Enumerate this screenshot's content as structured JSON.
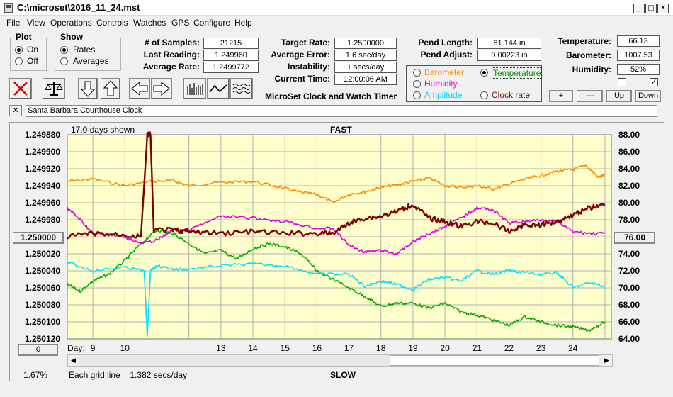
{
  "window": {
    "title": "C:\\microset\\2016_11_24.mst",
    "min": "_",
    "max": "□",
    "close": "✕"
  },
  "menu": [
    "File",
    "View",
    "Operations",
    "Controls",
    "Watches",
    "GPS",
    "Configure",
    "Help"
  ],
  "plot_group": {
    "title": "Plot",
    "on": "On",
    "off": "Off",
    "selected": "On"
  },
  "show_group": {
    "title": "Show",
    "rates": "Rates",
    "averages": "Averages",
    "selected": "Rates"
  },
  "stats": {
    "samples_label": "# of Samples:",
    "samples": "21215",
    "last_reading_label": "Last Reading:",
    "last_reading": "1.249960",
    "average_rate_label": "Average Rate:",
    "average_rate": "1.2499772",
    "target_rate_label": "Target Rate:",
    "target_rate": "1.2500000",
    "average_error_label": "Average Error:",
    "average_error": "1.6 sec/day",
    "instability_label": "Instability:",
    "instability": "1 secs/day",
    "current_time_label": "Current Time:",
    "current_time": "12:00:06 AM",
    "app_name": "MicroSet Clock and Watch Timer",
    "pend_length_label": "Pend Length:",
    "pend_length": "61.144 in",
    "pend_adjust_label": "Pend Adjust:",
    "pend_adjust": "0.00223 in",
    "temperature_label": "Temperature:",
    "temperature": "66.13",
    "barometer_label": "Barometer:",
    "barometer": "1007.53",
    "humidity_label": "Humidity:",
    "humidity": "52%"
  },
  "sensor_options": {
    "barometer": "Barometer",
    "temperature": "Temperature",
    "humidity": "Humidity",
    "amplitude": "Amplitude",
    "clock_rate": "Clock rate",
    "selected": "Temperature"
  },
  "sensor_buttons": {
    "plus": "+",
    "minus": "—",
    "up": "Up",
    "down": "Down"
  },
  "checkboxes": {
    "left_checked": false,
    "right_checked": true,
    "check_mark": "✓"
  },
  "clock_name": {
    "close": "✕",
    "value": "Santa Barbara Courthouse Clock"
  },
  "chart": {
    "days_shown": "17.0 days shown",
    "top_label": "FAST",
    "bottom_label": "SLOW",
    "left_button": "1.250000",
    "right_button": "76.00",
    "zero_button": "0",
    "percent": "1.67%",
    "grid_note": "Each grid line = 1.382 secs/day",
    "day_label": "Day:"
  },
  "colors": {
    "plot_bg": "#ffffcc",
    "grid": "#b0b0b0",
    "temperature": "#ff8c00",
    "clock_rate": "#7b0000",
    "humidity": "#dd00dd",
    "amplitude": "#00e0ff",
    "barometer": "#00aa00"
  },
  "chart_data": {
    "type": "line",
    "title": "FAST",
    "xlabel": "Day:",
    "ylabel": "",
    "y_left_ticks": [
      "1.249880",
      "1.249900",
      "1.249920",
      "1.249940",
      "1.249960",
      "1.249980",
      "1.250000",
      "1.250020",
      "1.250040",
      "1.250060",
      "1.250080",
      "1.250100",
      "1.250120"
    ],
    "y_right_ticks": [
      "88.00",
      "86.00",
      "84.00",
      "82.00",
      "80.00",
      "78.00",
      "76.00",
      "74.00",
      "72.00",
      "70.00",
      "68.00",
      "66.00",
      "64.00"
    ],
    "y_left_range": [
      1.24988,
      1.25012
    ],
    "y_left_inverted": true,
    "y_right_range": [
      64,
      88
    ],
    "x_ticks": [
      9,
      10,
      13,
      14,
      15,
      16,
      17,
      18,
      19,
      20,
      21,
      22,
      23,
      24
    ],
    "x_range": [
      8.2,
      25.2
    ],
    "grid": true,
    "series": [
      {
        "name": "Temperature",
        "color_key": "temperature",
        "axis": "right",
        "x": [
          8.2,
          9,
          10,
          10.8,
          11.5,
          12,
          13,
          14,
          15,
          15.5,
          16,
          16.5,
          17,
          17.5,
          18,
          18.5,
          19,
          19.5,
          20,
          20.5,
          21,
          21.5,
          22,
          22.5,
          23,
          23.5,
          24,
          24.4,
          24.8,
          25.0
        ],
        "y": [
          82.5,
          82.8,
          82.0,
          82.5,
          82.6,
          82.0,
          82.4,
          82.5,
          81.7,
          81.2,
          81.0,
          80.0,
          81.0,
          81.3,
          81.8,
          82.1,
          82.5,
          82.9,
          82.0,
          81.8,
          82.0,
          81.6,
          82.2,
          82.8,
          83.2,
          83.7,
          83.9,
          84.4,
          83.0,
          83.3
        ]
      },
      {
        "name": "Clock rate",
        "color_key": "clock_rate",
        "axis": "left",
        "x": [
          8.2,
          9,
          10,
          10.5,
          10.7,
          10.8,
          10.9,
          11.5,
          12,
          13,
          14,
          15,
          16,
          16.5,
          17,
          17.5,
          18,
          18.5,
          19,
          19.5,
          20,
          20.5,
          21,
          21.5,
          22,
          22.5,
          23,
          23.5,
          24,
          24.5,
          25.0
        ],
        "y": [
          1.25,
          1.249996,
          1.249998,
          1.25,
          1.24988,
          1.24988,
          1.249992,
          1.249992,
          1.249994,
          1.249996,
          1.249994,
          1.249996,
          1.249996,
          1.249996,
          1.249984,
          1.249978,
          1.249976,
          1.24997,
          1.249962,
          1.249978,
          1.249982,
          1.249988,
          1.249982,
          1.249984,
          1.249994,
          1.249986,
          1.249986,
          1.249982,
          1.249974,
          1.249966,
          1.249962
        ]
      },
      {
        "name": "Humidity",
        "color_key": "humidity",
        "axis": "left",
        "x": [
          8.2,
          8.6,
          9,
          9.5,
          10,
          10.5,
          11,
          11.5,
          12,
          13,
          14,
          15,
          16,
          16.5,
          17,
          17.5,
          18,
          18.5,
          19,
          19.5,
          20,
          20.5,
          21,
          21.5,
          22,
          22.5,
          23,
          23.5,
          24,
          24.5,
          25.0
        ],
        "y": [
          1.249966,
          1.24998,
          1.249996,
          1.249998,
          1.25,
          1.250008,
          1.250004,
          1.249992,
          1.249992,
          1.249976,
          1.249978,
          1.249982,
          1.24999,
          1.24999,
          1.25001,
          1.250018,
          1.250016,
          1.25002,
          1.250006,
          1.249996,
          1.249988,
          1.249978,
          1.249966,
          1.249968,
          1.249984,
          1.249982,
          1.24998,
          1.249982,
          1.249994,
          1.249996,
          1.249996
        ]
      },
      {
        "name": "Amplitude",
        "color_key": "amplitude",
        "axis": "left",
        "x": [
          8.2,
          9,
          10,
          10.6,
          10.7,
          10.8,
          11.0,
          11.5,
          12,
          13,
          14,
          15,
          16,
          17,
          17.5,
          18,
          18.5,
          19,
          19.5,
          20,
          20.5,
          21,
          21.5,
          22,
          22.5,
          23,
          23.5,
          24,
          24.5,
          25.0
        ],
        "y": [
          1.25003,
          1.25004,
          1.250036,
          1.25004,
          1.250118,
          1.25004,
          1.250034,
          1.250038,
          1.250038,
          1.250034,
          1.250032,
          1.250034,
          1.250044,
          1.250044,
          1.250058,
          1.250052,
          1.250056,
          1.250062,
          1.25005,
          1.250048,
          1.250052,
          1.25004,
          1.250044,
          1.25004,
          1.250042,
          1.250044,
          1.250042,
          1.25006,
          1.250054,
          1.250058
        ]
      },
      {
        "name": "Barometer",
        "color_key": "barometer",
        "axis": "left",
        "x": [
          8.2,
          8.6,
          9,
          9.5,
          10,
          10.5,
          11,
          11.5,
          12,
          12.5,
          13,
          13.5,
          14,
          14.5,
          15,
          15.5,
          16,
          17,
          17.5,
          18,
          18.5,
          19,
          19.5,
          20,
          20.5,
          21,
          21.5,
          22,
          22.5,
          23,
          23.5,
          24,
          24.5,
          25.0
        ],
        "y": [
          1.250056,
          1.250064,
          1.250052,
          1.250044,
          1.250028,
          1.250008,
          1.249992,
          1.249996,
          1.250008,
          1.25002,
          1.250016,
          1.250026,
          1.250014,
          1.250008,
          1.250012,
          1.25002,
          1.25004,
          1.25006,
          1.25007,
          1.250082,
          1.250078,
          1.250078,
          1.250084,
          1.250078,
          1.250088,
          1.250092,
          1.250098,
          1.250104,
          1.250094,
          1.2501,
          1.250104,
          1.250106,
          1.25011,
          1.2501
        ]
      }
    ]
  }
}
